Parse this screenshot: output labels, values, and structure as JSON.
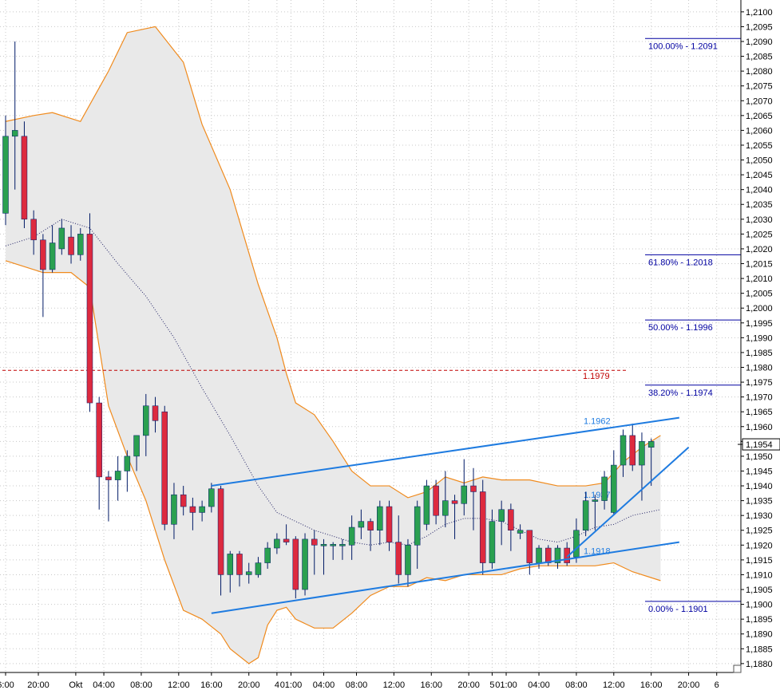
{
  "chart_data": {
    "type": "candlestick",
    "title": "",
    "instrument": "",
    "ylim": [
      1.1877,
      1.2104
    ],
    "y_ticks": [
      "1,1880",
      "1,1885",
      "1,1890",
      "1,1895",
      "1,1900",
      "1,1905",
      "1,1910",
      "1,1915",
      "1,1920",
      "1,1925",
      "1,1930",
      "1,1935",
      "1,1940",
      "1,1945",
      "1,1950",
      "1,1955",
      "1,1960",
      "1,1965",
      "1,1970",
      "1,1975",
      "1,1980",
      "1,1985",
      "1,1990",
      "1,1995",
      "1,2000",
      "1,2005",
      "1,2010",
      "1,2015",
      "1,2020",
      "1,2025",
      "1,2030",
      "1,2035",
      "1,2040",
      "1,2045",
      "1,2050",
      "1,2055",
      "1,2060",
      "1,2065",
      "1,2070",
      "1,2075",
      "1,2080",
      "1,2085",
      "1,2090",
      "1,2095",
      "1,2100"
    ],
    "x_ticks": [
      "6:00",
      "20:00",
      "Okt",
      "04:00",
      "08:00",
      "12:00",
      "16:00",
      "20:00",
      "4",
      "01:00",
      "04:00",
      "08:00",
      "12:00",
      "16:00",
      "20:00",
      "5",
      "01:00",
      "04:00",
      "08:00",
      "12:00",
      "16:00",
      "20:00",
      "6"
    ],
    "x_tick_slots": [
      0,
      3.5,
      7.5,
      10.5,
      14.5,
      18.5,
      22,
      26,
      29,
      30.5,
      34,
      37.5,
      41.5,
      45.5,
      49.5,
      52,
      53.5,
      57,
      61,
      65,
      69,
      73,
      76
    ],
    "current_price": {
      "value": 1.1954,
      "label": "1,1954"
    },
    "candles": [
      {
        "o": 1.2032,
        "h": 1.2065,
        "l": 1.2028,
        "c": 1.2058
      },
      {
        "o": 1.2058,
        "h": 1.209,
        "l": 1.204,
        "c": 1.206
      },
      {
        "o": 1.2058,
        "h": 1.2063,
        "l": 1.2027,
        "c": 1.203
      },
      {
        "o": 1.203,
        "h": 1.2033,
        "l": 1.2018,
        "c": 1.2023
      },
      {
        "o": 1.2023,
        "h": 1.2025,
        "l": 1.1997,
        "c": 1.2013
      },
      {
        "o": 1.2013,
        "h": 1.2028,
        "l": 1.2012,
        "c": 1.2022
      },
      {
        "o": 1.202,
        "h": 1.203,
        "l": 1.2018,
        "c": 1.2027
      },
      {
        "o": 1.2024,
        "h": 1.2028,
        "l": 1.2015,
        "c": 1.2018
      },
      {
        "o": 1.2018,
        "h": 1.2027,
        "l": 1.2016,
        "c": 1.2025
      },
      {
        "o": 1.2025,
        "h": 1.2032,
        "l": 1.1965,
        "c": 1.1968
      },
      {
        "o": 1.1968,
        "h": 1.197,
        "l": 1.1932,
        "c": 1.1943
      },
      {
        "o": 1.1943,
        "h": 1.1945,
        "l": 1.1928,
        "c": 1.1942
      },
      {
        "o": 1.1942,
        "h": 1.195,
        "l": 1.1935,
        "c": 1.1945
      },
      {
        "o": 1.1945,
        "h": 1.1952,
        "l": 1.1938,
        "c": 1.195
      },
      {
        "o": 1.195,
        "h": 1.1957,
        "l": 1.1945,
        "c": 1.1957
      },
      {
        "o": 1.1957,
        "h": 1.1971,
        "l": 1.195,
        "c": 1.1967
      },
      {
        "o": 1.1967,
        "h": 1.197,
        "l": 1.1958,
        "c": 1.1962
      },
      {
        "o": 1.1965,
        "h": 1.1967,
        "l": 1.1925,
        "c": 1.1927
      },
      {
        "o": 1.1927,
        "h": 1.1941,
        "l": 1.1922,
        "c": 1.1937
      },
      {
        "o": 1.1937,
        "h": 1.194,
        "l": 1.193,
        "c": 1.1933
      },
      {
        "o": 1.1933,
        "h": 1.1936,
        "l": 1.1925,
        "c": 1.1931
      },
      {
        "o": 1.1931,
        "h": 1.1935,
        "l": 1.1928,
        "c": 1.1933
      },
      {
        "o": 1.1933,
        "h": 1.1941,
        "l": 1.1931,
        "c": 1.1939
      },
      {
        "o": 1.1939,
        "h": 1.194,
        "l": 1.1903,
        "c": 1.191
      },
      {
        "o": 1.191,
        "h": 1.1918,
        "l": 1.1904,
        "c": 1.1917
      },
      {
        "o": 1.1917,
        "h": 1.1918,
        "l": 1.1906,
        "c": 1.191
      },
      {
        "o": 1.191,
        "h": 1.1914,
        "l": 1.1907,
        "c": 1.1911
      },
      {
        "o": 1.191,
        "h": 1.1916,
        "l": 1.1909,
        "c": 1.1914
      },
      {
        "o": 1.1914,
        "h": 1.1921,
        "l": 1.1912,
        "c": 1.1919
      },
      {
        "o": 1.1919,
        "h": 1.1924,
        "l": 1.1917,
        "c": 1.1922
      },
      {
        "o": 1.1922,
        "h": 1.1927,
        "l": 1.192,
        "c": 1.1921
      },
      {
        "o": 1.1922,
        "h": 1.1923,
        "l": 1.1902,
        "c": 1.1905
      },
      {
        "o": 1.1905,
        "h": 1.1924,
        "l": 1.1903,
        "c": 1.1922
      },
      {
        "o": 1.1922,
        "h": 1.1925,
        "l": 1.191,
        "c": 1.192
      },
      {
        "o": 1.192,
        "h": 1.1922,
        "l": 1.191,
        "c": 1.192
      },
      {
        "o": 1.192,
        "h": 1.1921,
        "l": 1.1915,
        "c": 1.192
      },
      {
        "o": 1.192,
        "h": 1.1922,
        "l": 1.1915,
        "c": 1.192
      },
      {
        "o": 1.192,
        "h": 1.193,
        "l": 1.1915,
        "c": 1.1926
      },
      {
        "o": 1.1926,
        "h": 1.1932,
        "l": 1.1922,
        "c": 1.1928
      },
      {
        "o": 1.1928,
        "h": 1.1929,
        "l": 1.1918,
        "c": 1.1925
      },
      {
        "o": 1.1925,
        "h": 1.1935,
        "l": 1.192,
        "c": 1.1933
      },
      {
        "o": 1.1933,
        "h": 1.1935,
        "l": 1.1918,
        "c": 1.1921
      },
      {
        "o": 1.1921,
        "h": 1.193,
        "l": 1.1907,
        "c": 1.191
      },
      {
        "o": 1.191,
        "h": 1.1922,
        "l": 1.1906,
        "c": 1.192
      },
      {
        "o": 1.192,
        "h": 1.1935,
        "l": 1.1912,
        "c": 1.1933
      },
      {
        "o": 1.1927,
        "h": 1.1942,
        "l": 1.1925,
        "c": 1.194
      },
      {
        "o": 1.194,
        "h": 1.1942,
        "l": 1.1927,
        "c": 1.193
      },
      {
        "o": 1.193,
        "h": 1.1945,
        "l": 1.1926,
        "c": 1.1935
      },
      {
        "o": 1.1935,
        "h": 1.1937,
        "l": 1.1922,
        "c": 1.1934
      },
      {
        "o": 1.1934,
        "h": 1.1949,
        "l": 1.193,
        "c": 1.194
      },
      {
        "o": 1.194,
        "h": 1.1946,
        "l": 1.1925,
        "c": 1.1938
      },
      {
        "o": 1.1938,
        "h": 1.1942,
        "l": 1.191,
        "c": 1.1914
      },
      {
        "o": 1.1914,
        "h": 1.1932,
        "l": 1.1912,
        "c": 1.1928
      },
      {
        "o": 1.1928,
        "h": 1.1935,
        "l": 1.192,
        "c": 1.1932
      },
      {
        "o": 1.1932,
        "h": 1.1934,
        "l": 1.1918,
        "c": 1.1925
      },
      {
        "o": 1.1924,
        "h": 1.1927,
        "l": 1.1922,
        "c": 1.1925
      },
      {
        "o": 1.1925,
        "h": 1.1925,
        "l": 1.191,
        "c": 1.1914
      },
      {
        "o": 1.1914,
        "h": 1.192,
        "l": 1.1912,
        "c": 1.1919
      },
      {
        "o": 1.1919,
        "h": 1.192,
        "l": 1.1913,
        "c": 1.1914
      },
      {
        "o": 1.1914,
        "h": 1.192,
        "l": 1.1912,
        "c": 1.1919
      },
      {
        "o": 1.1919,
        "h": 1.1921,
        "l": 1.1913,
        "c": 1.1914
      },
      {
        "o": 1.1916,
        "h": 1.1929,
        "l": 1.1914,
        "c": 1.1925
      },
      {
        "o": 1.1925,
        "h": 1.1938,
        "l": 1.1923,
        "c": 1.1935
      },
      {
        "o": 1.1935,
        "h": 1.1937,
        "l": 1.1925,
        "c": 1.1935
      },
      {
        "o": 1.1935,
        "h": 1.1945,
        "l": 1.1932,
        "c": 1.1943
      },
      {
        "o": 1.1931,
        "h": 1.1952,
        "l": 1.193,
        "c": 1.1947
      },
      {
        "o": 1.1947,
        "h": 1.1959,
        "l": 1.1943,
        "c": 1.1957
      },
      {
        "o": 1.1957,
        "h": 1.1961,
        "l": 1.1945,
        "c": 1.1947
      },
      {
        "o": 1.1947,
        "h": 1.1958,
        "l": 1.1935,
        "c": 1.1955
      },
      {
        "o": 1.1953,
        "h": 1.1956,
        "l": 1.194,
        "c": 1.1955
      }
    ],
    "bollinger": {
      "upper": [
        [
          0,
          1.2063
        ],
        [
          3,
          1.2065
        ],
        [
          5,
          1.2066
        ],
        [
          8,
          1.2063
        ],
        [
          11,
          1.208
        ],
        [
          13,
          1.2093
        ],
        [
          16,
          1.2095
        ],
        [
          19,
          1.2083
        ],
        [
          21,
          1.2062
        ],
        [
          24,
          1.204
        ],
        [
          27,
          1.2008
        ],
        [
          29,
          1.199
        ],
        [
          30,
          1.1978
        ],
        [
          31,
          1.1968
        ],
        [
          33,
          1.1964
        ],
        [
          35,
          1.1955
        ],
        [
          37,
          1.1945
        ],
        [
          39,
          1.194
        ],
        [
          41,
          1.194
        ],
        [
          43,
          1.1936
        ],
        [
          45,
          1.1938
        ],
        [
          47,
          1.1943
        ],
        [
          49,
          1.1941
        ],
        [
          51,
          1.1943
        ],
        [
          53,
          1.1942
        ],
        [
          56,
          1.1942
        ],
        [
          59,
          1.194
        ],
        [
          62,
          1.194
        ],
        [
          64,
          1.1941
        ],
        [
          66,
          1.1948
        ],
        [
          68,
          1.1953
        ],
        [
          70,
          1.1957
        ]
      ],
      "middle": [
        [
          0,
          1.2021
        ],
        [
          3,
          1.2024
        ],
        [
          6,
          1.203
        ],
        [
          9,
          1.2027
        ],
        [
          12,
          1.2015
        ],
        [
          15,
          1.2004
        ],
        [
          18,
          1.199
        ],
        [
          21,
          1.1973
        ],
        [
          24,
          1.1957
        ],
        [
          27,
          1.194
        ],
        [
          29,
          1.1931
        ],
        [
          31,
          1.1928
        ],
        [
          33,
          1.1925
        ],
        [
          35,
          1.1923
        ],
        [
          37,
          1.1921
        ],
        [
          39,
          1.192
        ],
        [
          41,
          1.1921
        ],
        [
          43,
          1.192
        ],
        [
          45,
          1.1923
        ],
        [
          47,
          1.1927
        ],
        [
          49,
          1.1929
        ],
        [
          51,
          1.1929
        ],
        [
          53,
          1.1928
        ],
        [
          55,
          1.1925
        ],
        [
          57,
          1.1922
        ],
        [
          59,
          1.1921
        ],
        [
          61,
          1.1923
        ],
        [
          63,
          1.1926
        ],
        [
          65,
          1.1927
        ],
        [
          67,
          1.193
        ],
        [
          70,
          1.1932
        ]
      ],
      "lower": [
        [
          0,
          1.2016
        ],
        [
          4,
          1.2012
        ],
        [
          7,
          1.2012
        ],
        [
          9,
          1.2007
        ],
        [
          11,
          1.1967
        ],
        [
          13,
          1.195
        ],
        [
          15,
          1.1935
        ],
        [
          17,
          1.1915
        ],
        [
          19,
          1.1898
        ],
        [
          21,
          1.1895
        ],
        [
          23,
          1.189
        ],
        [
          24,
          1.1885
        ],
        [
          26,
          1.188
        ],
        [
          27,
          1.1882
        ],
        [
          28,
          1.1893
        ],
        [
          29,
          1.1898
        ],
        [
          30,
          1.1899
        ],
        [
          31,
          1.1895
        ],
        [
          33,
          1.1892
        ],
        [
          35,
          1.1892
        ],
        [
          37,
          1.1897
        ],
        [
          39,
          1.1903
        ],
        [
          41,
          1.1906
        ],
        [
          43,
          1.1906
        ],
        [
          45,
          1.1909
        ],
        [
          47,
          1.1908
        ],
        [
          49,
          1.191
        ],
        [
          51,
          1.191
        ],
        [
          53,
          1.191
        ],
        [
          55,
          1.1912
        ],
        [
          57,
          1.1913
        ],
        [
          59,
          1.1913
        ],
        [
          61,
          1.1913
        ],
        [
          63,
          1.1913
        ],
        [
          65,
          1.1914
        ],
        [
          67,
          1.1911
        ],
        [
          70,
          1.1908
        ]
      ]
    },
    "fibonacci": [
      {
        "label": "100.00% - 1.2091",
        "value": 1.2091
      },
      {
        "label": "61.80% - 1.2018",
        "value": 1.2018
      },
      {
        "label": "50.00% - 1.1996",
        "value": 1.1996
      },
      {
        "label": "38.20% - 1.1974",
        "value": 1.1974
      },
      {
        "label": "0.00% - 1.1901",
        "value": 1.1901
      }
    ],
    "levels": [
      {
        "label": "1.1979",
        "value": 1.1979,
        "color": "#c00000",
        "style": "dashed"
      },
      {
        "label": "1.1962",
        "value": 1.1962,
        "color": "#1e7be0"
      },
      {
        "label": "1.1937",
        "value": 1.1937,
        "color": "#1e7be0"
      },
      {
        "label": "1.1918",
        "value": 1.1918,
        "color": "#1e7be0"
      }
    ],
    "trendlines": [
      {
        "from": [
          22,
          1.194
        ],
        "to": [
          72,
          1.1963
        ]
      },
      {
        "from": [
          22,
          1.1897
        ],
        "to": [
          72,
          1.1921
        ]
      },
      {
        "from": [
          60,
          1.1916
        ],
        "to": [
          73,
          1.1953
        ]
      }
    ],
    "colors": {
      "up": "#2aa050",
      "down": "#dd2a3f",
      "band": "#f08a1c",
      "band_fill": "#e9e9e9",
      "trend": "#1e7be0",
      "fib": "#0000a0"
    }
  }
}
